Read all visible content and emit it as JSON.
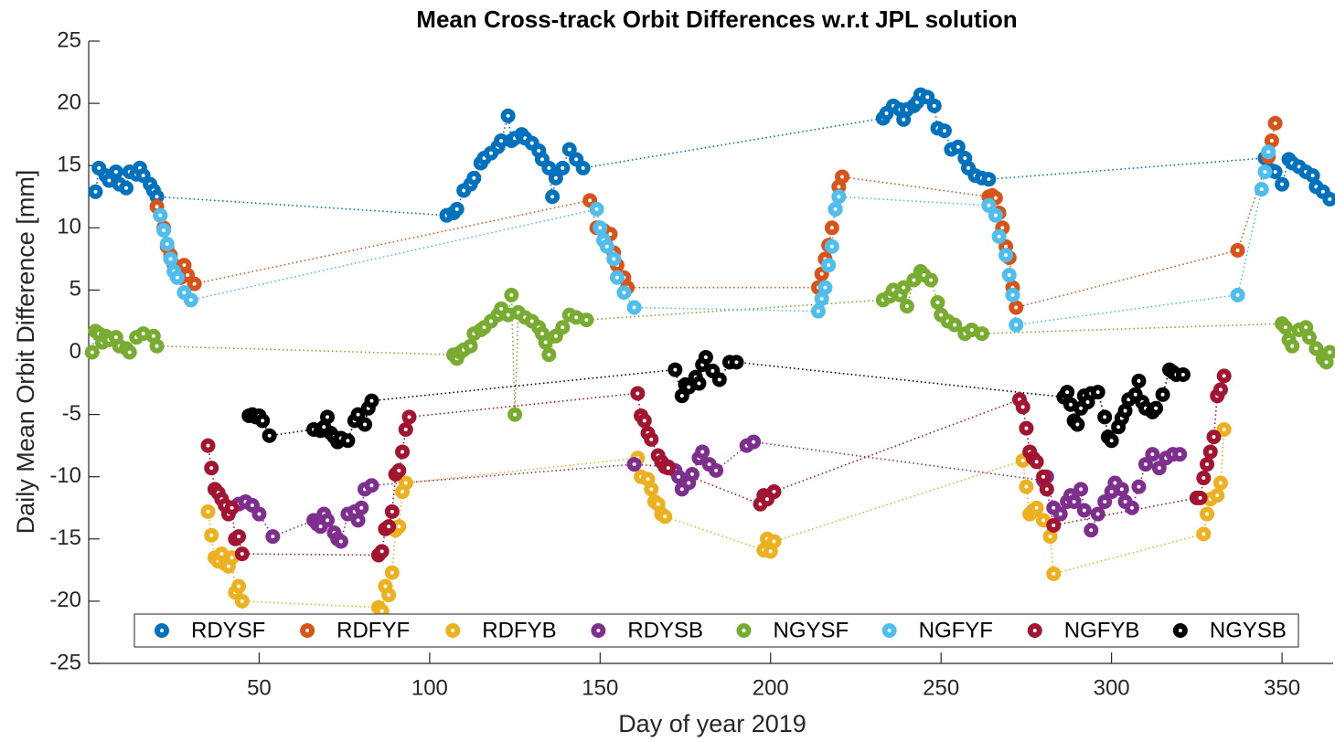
{
  "chart_data": {
    "type": "scatter-line",
    "title": "Mean Cross-track Orbit Differences w.r.t JPL solution",
    "x_label": "Day of year 2019",
    "y_label": "Daily Mean Orbit Difference [mm]",
    "xlim": [
      0,
      365
    ],
    "xticks": [
      50,
      100,
      150,
      200,
      250,
      300,
      350
    ],
    "ylim": [
      -25,
      25
    ],
    "yticks": [
      -25,
      -20,
      -15,
      -10,
      -5,
      0,
      5,
      10,
      15,
      20,
      25
    ],
    "legend": "bottom",
    "series": [
      {
        "name": "RDYSF",
        "color": "#0072BD",
        "x": [
          2,
          3,
          5,
          6,
          8,
          9,
          11,
          12,
          14,
          15,
          16,
          18,
          19,
          20,
          105,
          107,
          108,
          110,
          112,
          113,
          115,
          116,
          118,
          120,
          121,
          123,
          124,
          125,
          127,
          128,
          130,
          132,
          133,
          135,
          136,
          137,
          139,
          141,
          143,
          145,
          233,
          234,
          236,
          238,
          239,
          240,
          242,
          243,
          244,
          246,
          248,
          249,
          251,
          253,
          255,
          257,
          258,
          260,
          262,
          264,
          345,
          347,
          348,
          350,
          352,
          353,
          355,
          357,
          359,
          360,
          362,
          364
        ],
        "values": [
          12.9,
          14.8,
          14.2,
          13.8,
          14.5,
          13.5,
          13.2,
          14.5,
          14.3,
          14.8,
          14.2,
          13.5,
          13,
          12.5,
          11,
          11.2,
          11.5,
          13,
          13.5,
          14,
          15.2,
          15.6,
          16,
          16.5,
          17,
          19,
          17,
          17.2,
          17.5,
          17.2,
          16.8,
          16.2,
          15.5,
          14.8,
          12.5,
          14,
          14.8,
          16.3,
          15.5,
          14.8,
          18.8,
          19.2,
          19.8,
          19.5,
          18.7,
          19.5,
          19.8,
          20.1,
          20.7,
          20.5,
          19.8,
          18,
          17.8,
          16.3,
          16.5,
          15.6,
          14.8,
          14.2,
          14,
          13.9,
          15.6,
          14.6,
          14.5,
          13.5,
          15.5,
          15.2,
          14.9,
          14.5,
          14.2,
          13.3,
          12.9,
          12.3
        ]
      },
      {
        "name": "RDFYF",
        "color": "#D95319",
        "x": [
          20,
          21,
          22,
          23,
          24,
          25,
          26,
          27,
          28,
          29,
          31,
          147,
          149,
          151,
          153,
          154,
          155,
          157,
          158,
          214,
          215,
          216,
          217,
          218,
          219,
          220,
          221,
          264,
          265,
          266,
          267,
          268,
          269,
          270,
          271,
          272,
          337,
          346,
          347,
          348
        ],
        "values": [
          11.7,
          11,
          10,
          8.5,
          7.8,
          7,
          6.5,
          6,
          7,
          6.2,
          5.5,
          12.2,
          10,
          9.8,
          9.5,
          8,
          7,
          6,
          5.2,
          5.2,
          6.3,
          7.5,
          8.6,
          10,
          11.5,
          13.3,
          14.1,
          12.5,
          12.6,
          12.4,
          11.2,
          10,
          8.5,
          7.6,
          5.2,
          3.6,
          8.2,
          15.7,
          17,
          18.4
        ]
      },
      {
        "name": "RDFYB",
        "color": "#EDB120",
        "x": [
          35,
          36,
          37,
          38,
          39,
          40,
          41,
          42,
          43,
          44,
          45,
          85,
          86,
          87,
          88,
          89,
          90,
          91,
          92,
          93,
          161,
          162,
          164,
          165,
          166,
          167,
          168,
          169,
          198,
          199,
          200,
          201,
          274,
          275,
          276,
          277,
          278,
          280,
          282,
          283,
          327,
          328,
          329,
          331,
          332,
          333
        ],
        "values": [
          -12.8,
          -14.7,
          -16.5,
          -16.8,
          -16.2,
          -17,
          -17.2,
          -16.5,
          -19.3,
          -18.8,
          -20,
          -20.5,
          -20.8,
          -18.8,
          -19.5,
          -17.7,
          -14.3,
          -14,
          -11.2,
          -10.5,
          -8.5,
          -10,
          -10.2,
          -11,
          -12,
          -12.2,
          -13,
          -13.2,
          -15.9,
          -15,
          -16,
          -15.2,
          -8.7,
          -10.8,
          -13,
          -12.7,
          -12.5,
          -13.5,
          -14.8,
          -17.8,
          -14.6,
          -13,
          -11.8,
          -11.5,
          -10.5,
          -6.2
        ]
      },
      {
        "name": "RDYSB",
        "color": "#7E2F8E",
        "x": [
          42,
          44,
          46,
          48,
          50,
          54,
          66,
          67,
          68,
          69,
          70,
          72,
          73,
          74,
          76,
          78,
          79,
          80,
          81,
          83,
          160,
          170,
          172,
          173,
          174,
          176,
          177,
          179,
          180,
          182,
          184,
          193,
          195,
          280,
          281,
          283,
          285,
          287,
          288,
          289,
          291,
          292,
          294,
          296,
          298,
          300,
          301,
          303,
          304,
          306,
          308,
          310,
          312,
          314,
          316,
          318,
          320
        ],
        "values": [
          -12.5,
          -12.2,
          -12,
          -12.3,
          -13,
          -14.8,
          -13.5,
          -13.8,
          -14,
          -13,
          -13.5,
          -14.5,
          -15,
          -15.2,
          -13,
          -12.8,
          -13.5,
          -12.5,
          -11,
          -10.7,
          -9,
          -9.2,
          -9.5,
          -10,
          -11,
          -10.5,
          -9.8,
          -8.5,
          -8,
          -9,
          -9.5,
          -7.5,
          -7.2,
          -10.3,
          -10,
          -12.5,
          -13,
          -12,
          -11.5,
          -12,
          -11,
          -12.7,
          -14.3,
          -13,
          -12,
          -11.2,
          -10.5,
          -11,
          -12,
          -12.5,
          -10.8,
          -9,
          -8.2,
          -9.3,
          -8.5,
          -8.2,
          -8.2
        ]
      },
      {
        "name": "NGYSF",
        "color": "#77AC30",
        "x": [
          1,
          2,
          3,
          4,
          5,
          6,
          8,
          9,
          11,
          12,
          14,
          16,
          19,
          20,
          107,
          108,
          109,
          110,
          112,
          113,
          115,
          116,
          118,
          120,
          121,
          123,
          124,
          125,
          126,
          128,
          130,
          132,
          133,
          134,
          135,
          137,
          139,
          141,
          143,
          146,
          233,
          235,
          236,
          238,
          239,
          240,
          242,
          244,
          245,
          247,
          249,
          250,
          252,
          254,
          257,
          259,
          262,
          350,
          351,
          352,
          353,
          355,
          357,
          358,
          360,
          362,
          363,
          364
        ],
        "values": [
          0,
          1.7,
          1.5,
          0.8,
          1.3,
          1,
          1.2,
          0.5,
          0.3,
          0,
          1.2,
          1.5,
          1.3,
          0.5,
          -0.2,
          -0.5,
          0,
          0.2,
          0.5,
          1.5,
          1.8,
          2,
          2.5,
          3,
          3.5,
          3,
          4.6,
          -5,
          3.2,
          2.8,
          2.5,
          2,
          1.5,
          0.8,
          -0.2,
          1.3,
          2,
          3,
          2.8,
          2.6,
          4.2,
          4.5,
          5,
          4.6,
          5.2,
          3.7,
          5.8,
          6.5,
          6.2,
          5.8,
          4,
          3,
          2.5,
          2.2,
          1.5,
          1.8,
          1.5,
          2.3,
          2,
          1,
          0.5,
          1.8,
          2,
          1.2,
          0.3,
          -0.5,
          -0.8,
          0
        ]
      },
      {
        "name": "NGFYF",
        "color": "#4DBEEE",
        "x": [
          21,
          22,
          23,
          24,
          25,
          26,
          28,
          30,
          149,
          150,
          151,
          152,
          154,
          155,
          157,
          160,
          214,
          215,
          216,
          217,
          218,
          219,
          220,
          264,
          266,
          267,
          269,
          270,
          271,
          272,
          337,
          344,
          345,
          346
        ],
        "values": [
          11,
          9.8,
          8.7,
          7.5,
          6.5,
          6,
          4.8,
          4.2,
          11.5,
          10,
          9,
          8.5,
          7.5,
          6,
          4.8,
          3.6,
          3.3,
          4.3,
          5.2,
          7,
          8.5,
          11.5,
          12.5,
          11.8,
          11,
          9.3,
          7.8,
          6.2,
          4.6,
          2.2,
          4.6,
          13.1,
          14.5,
          16.1
        ]
      },
      {
        "name": "NGFYB",
        "color": "#A2142F",
        "x": [
          35,
          36,
          37,
          38,
          39,
          40,
          41,
          42,
          43,
          44,
          45,
          85,
          86,
          87,
          88,
          89,
          90,
          91,
          92,
          93,
          94,
          161,
          162,
          163,
          164,
          165,
          167,
          168,
          169,
          170,
          197,
          198,
          199,
          201,
          273,
          274,
          275,
          276,
          277,
          278,
          280,
          281,
          283,
          325,
          326,
          327,
          328,
          329,
          330,
          331,
          332,
          333
        ],
        "values": [
          -7.5,
          -9.3,
          -11,
          -11.3,
          -11.8,
          -12.3,
          -13,
          -12.5,
          -15,
          -14.8,
          -16.2,
          -16.3,
          -16,
          -14.2,
          -14,
          -12.8,
          -9.8,
          -9.5,
          -8,
          -6.2,
          -5.2,
          -3.3,
          -5.1,
          -5.5,
          -6.5,
          -7,
          -8.3,
          -8.8,
          -9.2,
          -9.3,
          -12.2,
          -11.5,
          -11.8,
          -11.2,
          -3.8,
          -4.4,
          -6.1,
          -8,
          -8.5,
          -8.8,
          -10,
          -11,
          -13.9,
          -11.7,
          -11.7,
          -10.1,
          -9,
          -8,
          -6.8,
          -3.5,
          -3,
          -1.9
        ]
      },
      {
        "name": "NGYSB",
        "color": "#000000",
        "x": [
          47,
          48,
          49,
          50,
          51,
          53,
          66,
          68,
          69,
          70,
          71,
          72,
          73,
          74,
          76,
          78,
          79,
          81,
          82,
          83,
          172,
          174,
          175,
          176,
          178,
          179,
          180,
          181,
          183,
          185,
          188,
          190,
          286,
          287,
          288,
          289,
          290,
          291,
          292,
          293,
          294,
          296,
          298,
          299,
          300,
          302,
          303,
          304,
          305,
          307,
          308,
          309,
          310,
          312,
          313,
          315,
          317,
          318,
          319,
          321
        ],
        "values": [
          -5.1,
          -5,
          -5.2,
          -5.1,
          -5.5,
          -6.7,
          -6.2,
          -6.3,
          -6,
          -5.2,
          -6.5,
          -6.8,
          -7.2,
          -6.9,
          -7.1,
          -5.5,
          -5,
          -5.8,
          -4.5,
          -3.9,
          -1.4,
          -3.5,
          -2.6,
          -2.8,
          -2,
          -2.5,
          -1,
          -0.4,
          -1.5,
          -2.2,
          -0.8,
          -0.8,
          -3.6,
          -3.2,
          -4.2,
          -5.5,
          -5.8,
          -4.5,
          -3.5,
          -4,
          -3.3,
          -3.2,
          -5.2,
          -6.8,
          -7.1,
          -6,
          -5.3,
          -4.7,
          -3.8,
          -3.4,
          -2.3,
          -4,
          -4.5,
          -4.8,
          -4.5,
          -3.4,
          -1.4,
          -1.6,
          -1.8,
          -1.8
        ]
      }
    ]
  }
}
